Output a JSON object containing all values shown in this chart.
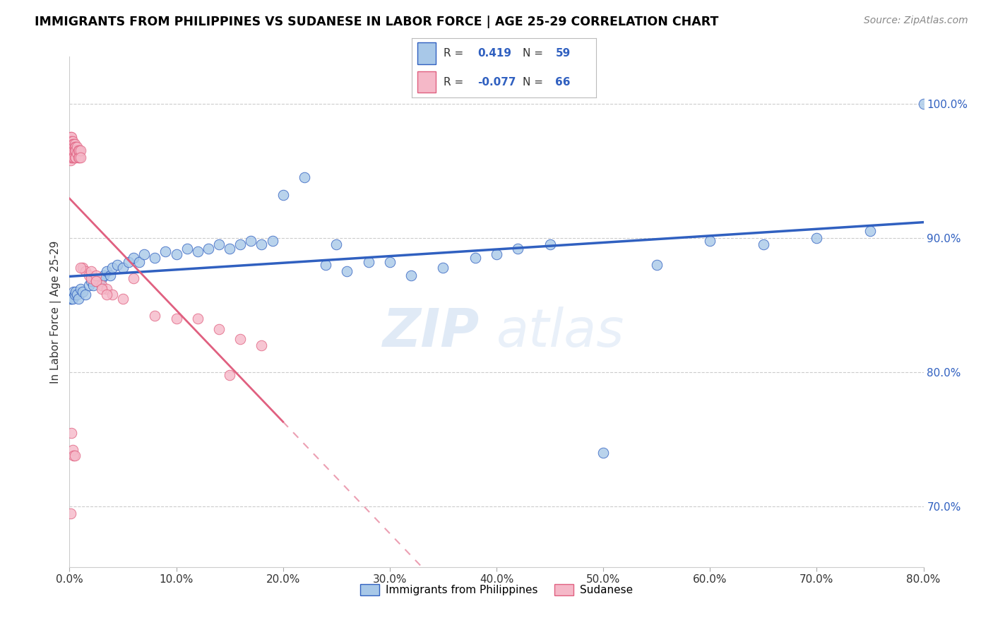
{
  "title": "IMMIGRANTS FROM PHILIPPINES VS SUDANESE IN LABOR FORCE | AGE 25-29 CORRELATION CHART",
  "source": "Source: ZipAtlas.com",
  "xlim": [
    0.0,
    0.8
  ],
  "ylim": [
    0.655,
    1.035
  ],
  "ylabel": "In Labor Force | Age 25-29",
  "legend_label1": "Immigrants from Philippines",
  "legend_label2": "Sudanese",
  "r1": "0.419",
  "n1": "59",
  "r2": "-0.077",
  "n2": "66",
  "color_blue": "#a8c8e8",
  "color_pink": "#f5b8c8",
  "line_blue": "#3060c0",
  "line_pink": "#e06080",
  "watermark_zip": "ZIP",
  "watermark_atlas": "atlas",
  "philippines_x": [
    0.001,
    0.002,
    0.003,
    0.004,
    0.005,
    0.006,
    0.007,
    0.008,
    0.01,
    0.012,
    0.015,
    0.018,
    0.02,
    0.022,
    0.025,
    0.028,
    0.03,
    0.032,
    0.035,
    0.038,
    0.04,
    0.045,
    0.05,
    0.055,
    0.06,
    0.065,
    0.07,
    0.08,
    0.09,
    0.1,
    0.11,
    0.12,
    0.13,
    0.14,
    0.15,
    0.16,
    0.17,
    0.18,
    0.19,
    0.2,
    0.22,
    0.24,
    0.25,
    0.26,
    0.28,
    0.3,
    0.32,
    0.35,
    0.38,
    0.4,
    0.42,
    0.45,
    0.5,
    0.55,
    0.6,
    0.65,
    0.7,
    0.75,
    0.8
  ],
  "philippines_y": [
    0.855,
    0.855,
    0.855,
    0.86,
    0.858,
    0.86,
    0.858,
    0.855,
    0.862,
    0.86,
    0.858,
    0.865,
    0.868,
    0.865,
    0.87,
    0.868,
    0.87,
    0.872,
    0.875,
    0.872,
    0.878,
    0.88,
    0.878,
    0.882,
    0.885,
    0.882,
    0.888,
    0.885,
    0.89,
    0.888,
    0.892,
    0.89,
    0.892,
    0.895,
    0.892,
    0.895,
    0.898,
    0.895,
    0.898,
    0.932,
    0.945,
    0.88,
    0.895,
    0.875,
    0.882,
    0.882,
    0.872,
    0.878,
    0.885,
    0.888,
    0.892,
    0.895,
    0.74,
    0.88,
    0.898,
    0.895,
    0.9,
    0.905,
    1.0
  ],
  "sudanese_x": [
    0.001,
    0.001,
    0.001,
    0.001,
    0.001,
    0.001,
    0.001,
    0.001,
    0.002,
    0.002,
    0.002,
    0.002,
    0.002,
    0.002,
    0.003,
    0.003,
    0.003,
    0.003,
    0.003,
    0.004,
    0.004,
    0.004,
    0.004,
    0.005,
    0.005,
    0.005,
    0.005,
    0.006,
    0.006,
    0.006,
    0.007,
    0.007,
    0.008,
    0.008,
    0.009,
    0.009,
    0.01,
    0.01,
    0.012,
    0.015,
    0.018,
    0.02,
    0.025,
    0.03,
    0.035,
    0.04,
    0.05,
    0.06,
    0.08,
    0.1,
    0.12,
    0.14,
    0.15,
    0.16,
    0.18,
    0.001,
    0.002,
    0.003,
    0.004,
    0.005,
    0.01,
    0.02,
    0.025,
    0.025,
    0.03,
    0.035
  ],
  "sudanese_y": [
    0.975,
    0.972,
    0.97,
    0.968,
    0.965,
    0.963,
    0.96,
    0.958,
    0.975,
    0.972,
    0.97,
    0.968,
    0.965,
    0.96,
    0.972,
    0.97,
    0.968,
    0.965,
    0.96,
    0.97,
    0.968,
    0.965,
    0.96,
    0.97,
    0.968,
    0.965,
    0.96,
    0.968,
    0.965,
    0.96,
    0.968,
    0.963,
    0.965,
    0.96,
    0.965,
    0.96,
    0.965,
    0.96,
    0.878,
    0.875,
    0.872,
    0.87,
    0.868,
    0.865,
    0.862,
    0.858,
    0.855,
    0.87,
    0.842,
    0.84,
    0.84,
    0.832,
    0.798,
    0.825,
    0.82,
    0.695,
    0.755,
    0.742,
    0.738,
    0.738,
    0.878,
    0.875,
    0.872,
    0.868,
    0.862,
    0.858
  ]
}
